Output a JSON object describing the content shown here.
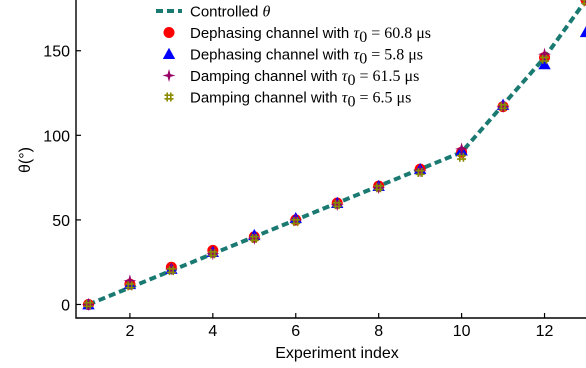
{
  "chart_data": {
    "type": "scatter",
    "xlabel": "Experiment index",
    "ylabel": "θ(°)",
    "xlim": [
      0.7,
      13.0
    ],
    "ylim": [
      -8,
      180
    ],
    "x_ticks": [
      2,
      4,
      6,
      8,
      10,
      12
    ],
    "y_ticks": [
      0,
      50,
      100,
      150
    ],
    "grid": false,
    "legend_position": "top-left",
    "series": [
      {
        "name": "Controlled θ",
        "kind": "dashed-line",
        "color": "#1a7a72",
        "x": [
          1,
          2,
          3,
          4,
          5,
          6,
          7,
          8,
          9,
          10,
          11,
          12,
          13
        ],
        "y": [
          0,
          10,
          20,
          30,
          40,
          50,
          60,
          70,
          80,
          90,
          118,
          146,
          180
        ]
      },
      {
        "name": "Dephasing channel with τ0 = 60.8 μs",
        "kind": "marker",
        "marker": "circle",
        "color": "#ff0000",
        "x": [
          1,
          2,
          3,
          4,
          5,
          6,
          7,
          8,
          9,
          10,
          11,
          12,
          13
        ],
        "y": [
          0,
          12,
          22,
          32,
          40,
          50,
          60,
          70,
          80,
          90,
          117,
          146,
          180
        ]
      },
      {
        "name": "Dephasing channel with τ0 = 5.8 μs",
        "kind": "marker",
        "marker": "triangle",
        "color": "#0000ff",
        "x": [
          1,
          2,
          3,
          4,
          5,
          6,
          7,
          8,
          9,
          10,
          11,
          12,
          13
        ],
        "y": [
          0,
          12,
          21,
          31,
          41,
          51,
          60,
          70,
          80,
          91,
          118,
          142,
          161
        ]
      },
      {
        "name": "Damping channel with τ0 = 61.5 μs",
        "kind": "marker",
        "marker": "star",
        "color": "#990066",
        "x": [
          1,
          2,
          3,
          4,
          5,
          6,
          7,
          8,
          9,
          10,
          11,
          12,
          13
        ],
        "y": [
          0,
          14,
          21,
          30,
          39,
          50,
          59,
          69,
          79,
          92,
          117,
          148,
          180
        ]
      },
      {
        "name": "Damping channel with τ0 = 6.5 μs",
        "kind": "marker",
        "marker": "hash",
        "color": "#8a8a00",
        "x": [
          1,
          2,
          3,
          4,
          5,
          6,
          7,
          8,
          9,
          10,
          11,
          12,
          13
        ],
        "y": [
          0,
          11,
          20,
          30,
          39,
          49,
          59,
          69,
          78,
          87,
          117,
          145,
          179
        ]
      }
    ],
    "legend": [
      {
        "main": "Controlled ",
        "math": "θ",
        "tail": ""
      },
      {
        "main": "Dephasing channel with ",
        "math": "τ",
        "sub": "0",
        "tail": " = 60.8 μs"
      },
      {
        "main": "Dephasing channel with ",
        "math": "τ",
        "sub": "0",
        "tail": " = 5.8 μs"
      },
      {
        "main": "Damping channel with ",
        "math": "τ",
        "sub": "0",
        "tail": " = 61.5 μs"
      },
      {
        "main": "Damping channel with ",
        "math": "τ",
        "sub": "0",
        "tail": " = 6.5 μs"
      }
    ]
  }
}
